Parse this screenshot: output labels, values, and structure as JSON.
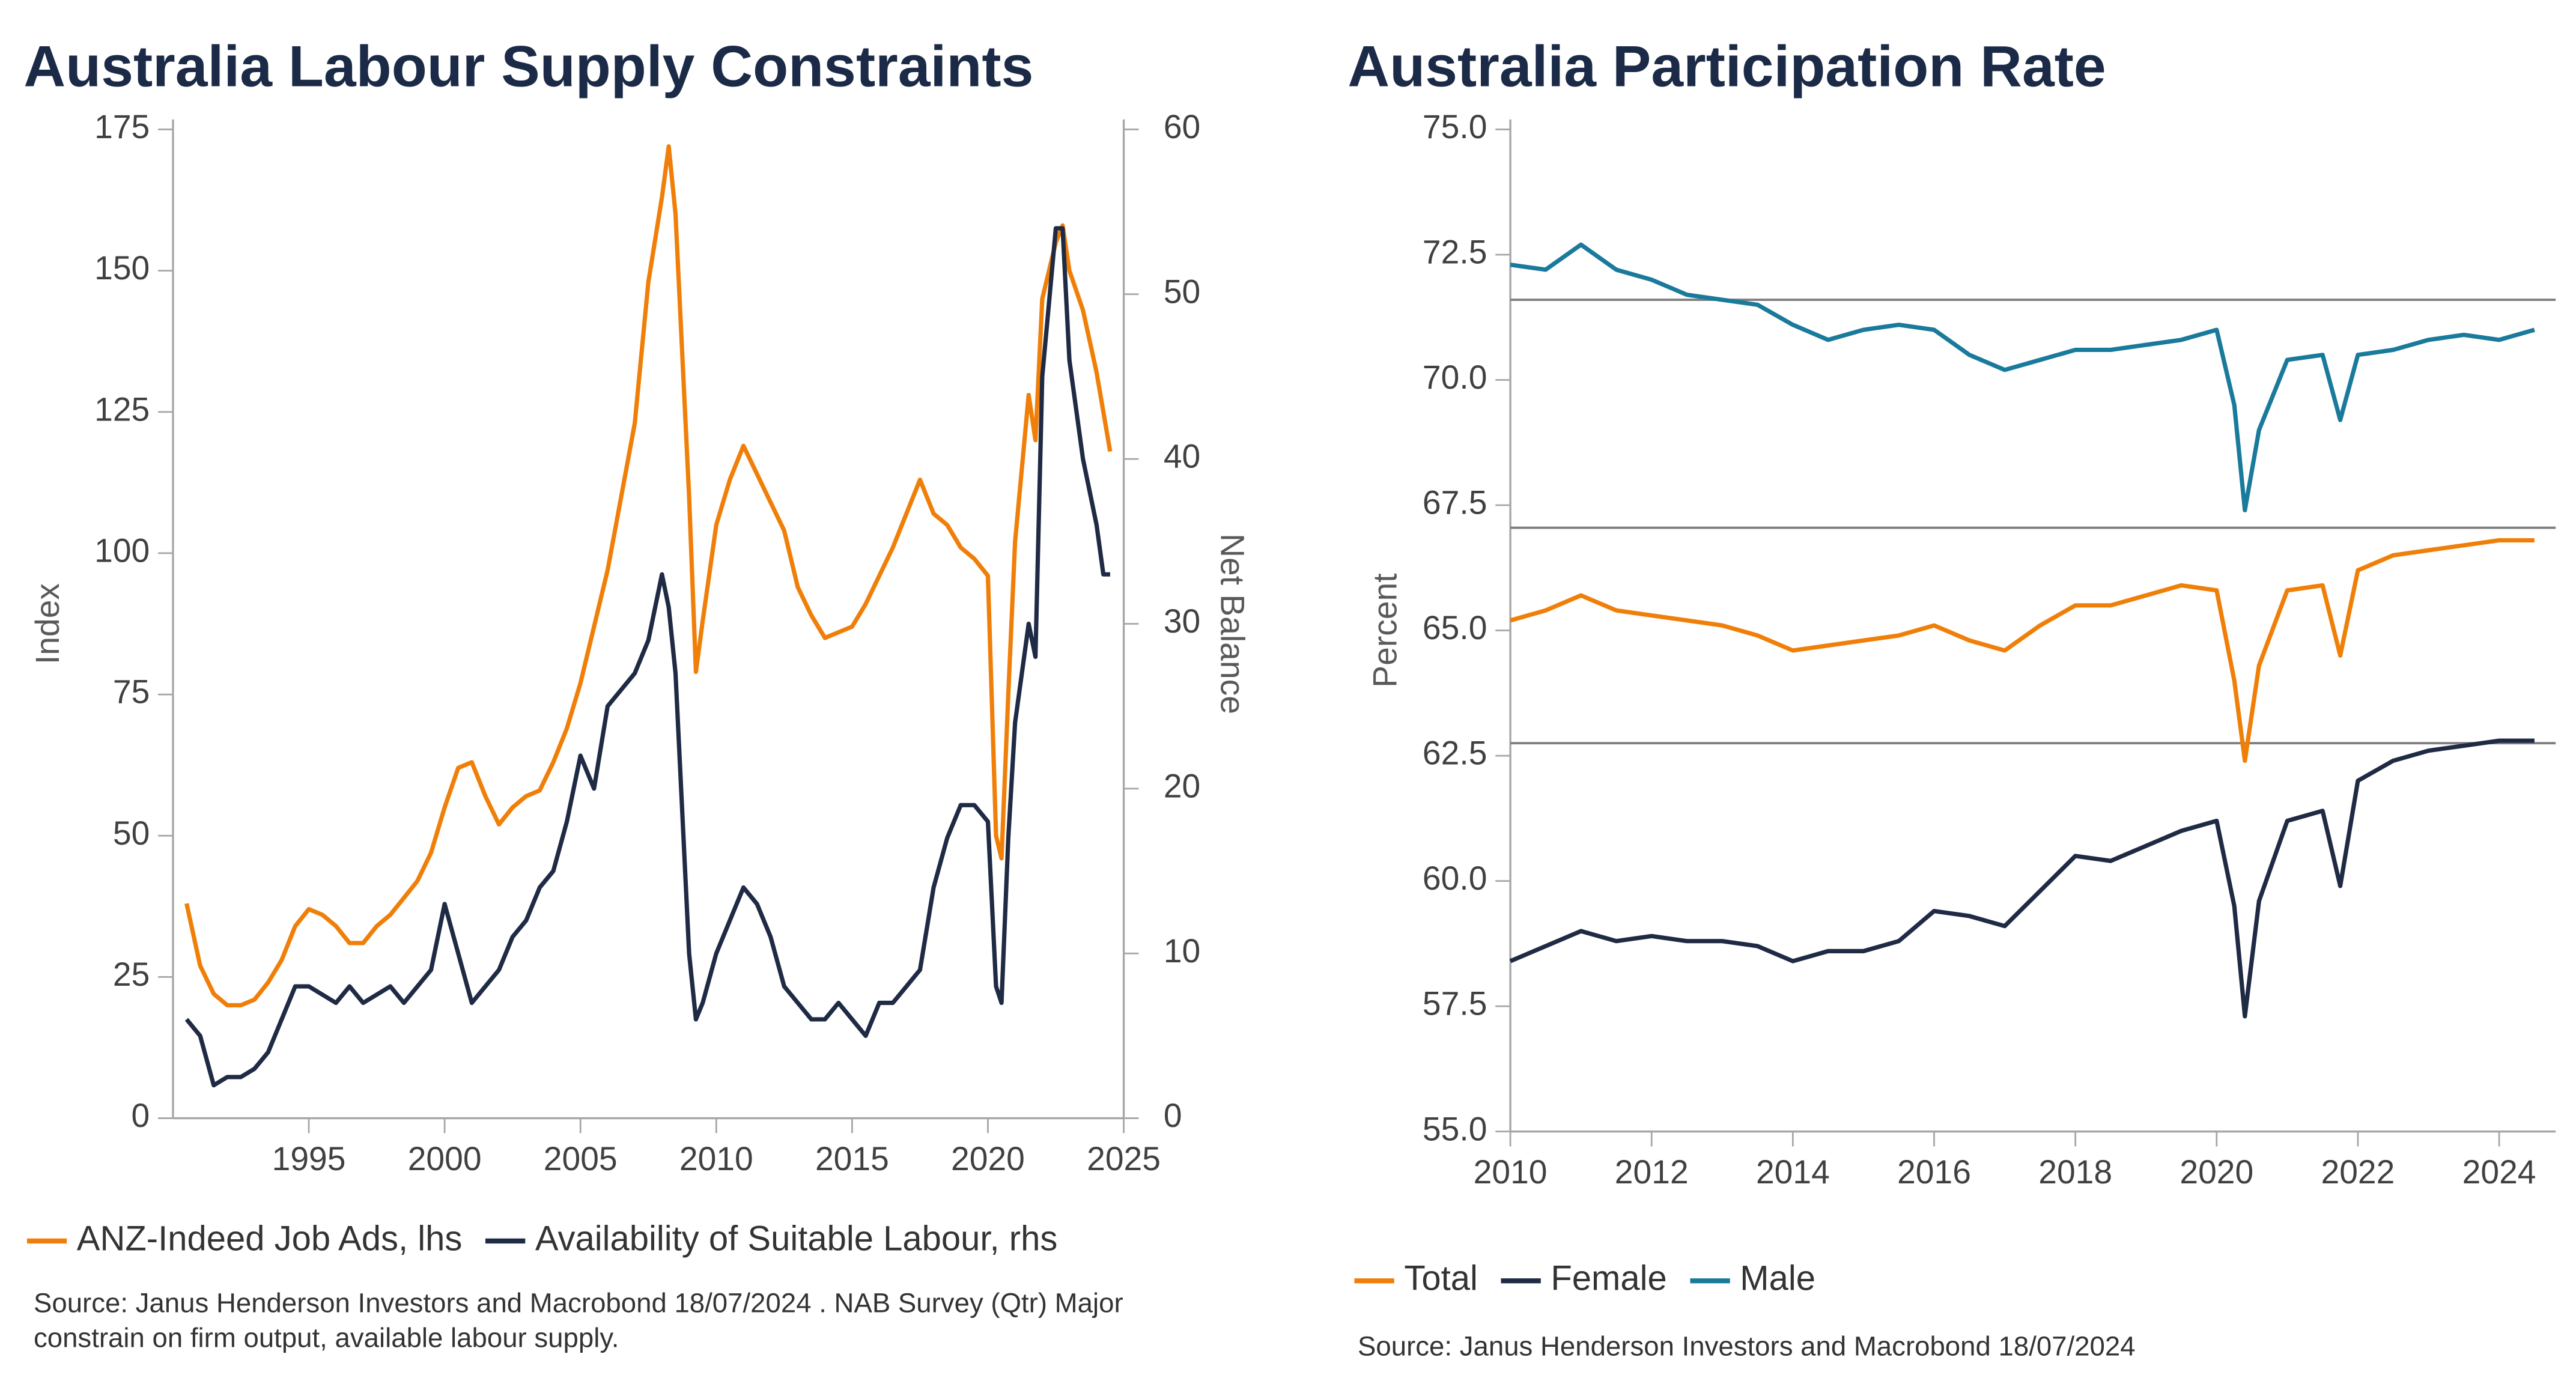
{
  "chart_data": [
    {
      "type": "line",
      "title": "Australia Labour Supply Constraints",
      "y_label": "Index",
      "y2_label": "Net Balance",
      "source": "Source: Janus Henderson Investors and Macrobond  18/07/2024 . NAB Survey (Qtr) Major constrain on firm output, available labour supply.",
      "legend": "bottom",
      "xlim": [
        1990,
        2025
      ],
      "xticks": [
        1995,
        2000,
        2005,
        2010,
        2015,
        2020,
        2025
      ],
      "ylim": [
        0,
        175
      ],
      "yticks": [
        0,
        25,
        50,
        75,
        100,
        125,
        150,
        175
      ],
      "y2lim": [
        0,
        60
      ],
      "y2ticks": [
        0,
        10,
        20,
        30,
        40,
        50,
        60
      ],
      "x": [
        1990.5,
        1991,
        1991.5,
        1992,
        1992.5,
        1993,
        1993.5,
        1994,
        1994.5,
        1995,
        1995.5,
        1996,
        1996.5,
        1997,
        1997.5,
        1998,
        1998.5,
        1999,
        1999.5,
        2000,
        2000.5,
        2001,
        2001.5,
        2002,
        2002.5,
        2003,
        2003.5,
        2004,
        2004.5,
        2005,
        2005.5,
        2006,
        2006.5,
        2007,
        2007.5,
        2008,
        2008.25,
        2008.5,
        2009,
        2009.25,
        2009.5,
        2010,
        2010.5,
        2011,
        2011.5,
        2012,
        2012.5,
        2013,
        2013.5,
        2014,
        2014.5,
        2015,
        2015.5,
        2016,
        2016.5,
        2017,
        2017.5,
        2018,
        2018.5,
        2019,
        2019.5,
        2020,
        2020.3,
        2020.5,
        2020.75,
        2021,
        2021.5,
        2021.75,
        2022,
        2022.5,
        2022.75,
        2023,
        2023.5,
        2024,
        2024.25,
        2024.5
      ],
      "series": [
        {
          "name": "ANZ-Indeed Job Ads, lhs",
          "color": "#f07f09",
          "axis": "y",
          "values": [
            38,
            27,
            22,
            20,
            20,
            21,
            24,
            28,
            34,
            37,
            36,
            34,
            31,
            31,
            34,
            36,
            39,
            42,
            47,
            55,
            62,
            63,
            57,
            52,
            55,
            57,
            58,
            63,
            69,
            77,
            87,
            97,
            110,
            123,
            148,
            163,
            172,
            160,
            110,
            79,
            88,
            105,
            113,
            119,
            114,
            109,
            104,
            94,
            89,
            85,
            86,
            87,
            91,
            96,
            101,
            107,
            113,
            107,
            105,
            101,
            99,
            96,
            50,
            46,
            75,
            102,
            128,
            120,
            145,
            155,
            158,
            150,
            143,
            132,
            125,
            118
          ]
        },
        {
          "name": "Availability of Suitable Labour, rhs",
          "color": "#1f2a44",
          "axis": "y2",
          "values": [
            6,
            5,
            2,
            2.5,
            2.5,
            3,
            4,
            6,
            8,
            8,
            7.5,
            7,
            8,
            7,
            7.5,
            8,
            7,
            8,
            9,
            13,
            10,
            7,
            8,
            9,
            11,
            12,
            14,
            15,
            18,
            22,
            20,
            25,
            26,
            27,
            29,
            33,
            31,
            27,
            10,
            6,
            7,
            10,
            12,
            14,
            13,
            11,
            8,
            7,
            6,
            6,
            7,
            6,
            5,
            7,
            7,
            8,
            9,
            14,
            17,
            19,
            19,
            18,
            8,
            7,
            17,
            24,
            30,
            28,
            45,
            54,
            54,
            46,
            40,
            36,
            33,
            33
          ]
        }
      ]
    },
    {
      "type": "line",
      "title": "Australia Participation Rate",
      "y_label": "Percent",
      "source": "Source: Janus Henderson Investors and Macrobond  18/07/2024",
      "legend": "bottom",
      "xlim": [
        2010,
        2024.8
      ],
      "xticks": [
        2010,
        2012,
        2014,
        2016,
        2018,
        2020,
        2022,
        2024
      ],
      "ylim": [
        55,
        75
      ],
      "yticks": [
        {
          "value": 55,
          "label": "55.0"
        },
        {
          "value": 57.5,
          "label": "57.5"
        },
        {
          "value": 60,
          "label": "60.0"
        },
        {
          "value": 62.5,
          "label": "62.5"
        },
        {
          "value": 65,
          "label": "65.0"
        },
        {
          "value": 67.5,
          "label": "67.5"
        },
        {
          "value": 70,
          "label": "70.0"
        },
        {
          "value": 72.5,
          "label": "72.5"
        },
        {
          "value": 75,
          "label": "75.0"
        }
      ],
      "reference_lines": [
        71.6,
        67.05,
        62.75
      ],
      "x": [
        2010,
        2010.5,
        2011,
        2011.5,
        2012,
        2012.5,
        2013,
        2013.5,
        2014,
        2014.5,
        2015,
        2015.5,
        2016,
        2016.5,
        2017,
        2017.5,
        2018,
        2018.5,
        2019,
        2019.5,
        2020,
        2020.25,
        2020.4,
        2020.6,
        2021,
        2021.5,
        2021.75,
        2022,
        2022.5,
        2023,
        2023.5,
        2024,
        2024.5
      ],
      "series": [
        {
          "name": "Total",
          "color": "#f07f09",
          "values": [
            65.2,
            65.4,
            65.7,
            65.4,
            65.3,
            65.2,
            65.1,
            64.9,
            64.6,
            64.7,
            64.8,
            64.9,
            65.1,
            64.8,
            64.6,
            65.1,
            65.5,
            65.5,
            65.7,
            65.9,
            65.8,
            64.0,
            62.4,
            64.3,
            65.8,
            65.9,
            64.5,
            66.2,
            66.5,
            66.6,
            66.7,
            66.8,
            66.8
          ]
        },
        {
          "name": "Female",
          "color": "#1f2a44",
          "values": [
            58.4,
            58.7,
            59.0,
            58.8,
            58.9,
            58.8,
            58.8,
            58.7,
            58.4,
            58.6,
            58.6,
            58.8,
            59.4,
            59.3,
            59.1,
            59.8,
            60.5,
            60.4,
            60.7,
            61.0,
            61.2,
            59.5,
            57.3,
            59.6,
            61.2,
            61.4,
            59.9,
            62.0,
            62.4,
            62.6,
            62.7,
            62.8,
            62.8
          ]
        },
        {
          "name": "Male",
          "color": "#1a7a9c",
          "values": [
            72.3,
            72.2,
            72.7,
            72.2,
            72.0,
            71.7,
            71.6,
            71.5,
            71.1,
            70.8,
            71.0,
            71.1,
            71.0,
            70.5,
            70.2,
            70.4,
            70.6,
            70.6,
            70.7,
            70.8,
            71.0,
            69.5,
            67.4,
            69.0,
            70.4,
            70.5,
            69.2,
            70.5,
            70.6,
            70.8,
            70.9,
            70.8,
            71.0
          ]
        }
      ]
    }
  ]
}
